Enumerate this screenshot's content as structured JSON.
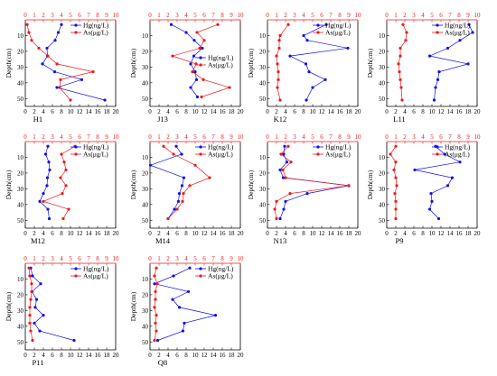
{
  "colors": {
    "hg": "#1010ee",
    "as": "#ee1b1b",
    "axis": "#000000"
  },
  "legend_labels": {
    "hg": "Hg(ng/L)",
    "as": "As(μg/L)"
  },
  "y_axis_label": "Depth(cm)",
  "chart_data": [
    {
      "type": "line",
      "title": "H1",
      "legend_position": "top-right",
      "xlabel": "",
      "ylabel": "Depth(cm)",
      "ylim": [
        55,
        0
      ],
      "x_top": {
        "range": [
          0,
          10
        ],
        "ticks": [
          "0",
          "1",
          "2",
          "3",
          "4",
          "5",
          "6",
          "7",
          "8",
          "9",
          "10"
        ]
      },
      "x_bottom": {
        "range": [
          0,
          20
        ],
        "ticks": [
          "0",
          "2",
          "4",
          "6",
          "8",
          "10",
          "12",
          "14",
          "16",
          "18",
          "20"
        ]
      },
      "y_ticks": [
        "10",
        "20",
        "30",
        "40",
        "50"
      ],
      "series": [
        {
          "name": "Hg(ng/L)",
          "axis": "bottom",
          "depth": [
            3,
            8,
            13,
            18,
            23,
            28,
            33,
            38,
            43,
            51
          ],
          "values": [
            8.0,
            7.3,
            6.6,
            4.8,
            4.9,
            3.8,
            6.5,
            12.5,
            7.0,
            17.6
          ]
        },
        {
          "name": "As(μg/L)",
          "axis": "top",
          "depth": [
            3,
            8,
            13,
            18,
            23,
            28,
            33,
            38,
            43,
            51
          ],
          "values": [
            0.2,
            0.4,
            0.7,
            1.5,
            2.5,
            3.5,
            7.5,
            3.9,
            3.8,
            5.0
          ]
        }
      ]
    },
    {
      "type": "line",
      "title": "J13",
      "legend_position": "center-right",
      "xlabel": "",
      "ylabel": "Depth(cm)",
      "ylim": [
        55,
        0
      ],
      "x_top": {
        "range": [
          0,
          10
        ],
        "ticks": [
          "0",
          "1",
          "2",
          "3",
          "4",
          "5",
          "6",
          "7",
          "8",
          "9",
          "10"
        ]
      },
      "x_bottom": {
        "range": [
          0,
          20
        ],
        "ticks": [
          "0",
          "2",
          "4",
          "6",
          "8",
          "10",
          "12",
          "14",
          "16",
          "18",
          "20"
        ]
      },
      "y_ticks": [
        "10",
        "20",
        "30",
        "40",
        "50"
      ],
      "series": [
        {
          "name": "Hg(ng/L)",
          "axis": "bottom",
          "depth": [
            3,
            8,
            13,
            18,
            23,
            28,
            33,
            38,
            43,
            49
          ],
          "values": [
            4.7,
            8.0,
            9.8,
            11.6,
            9.7,
            9.0,
            10.0,
            10.3,
            9.0,
            10.5
          ]
        },
        {
          "name": "As(μg/L)",
          "axis": "top",
          "depth": [
            3,
            8,
            13,
            18,
            23,
            28,
            33,
            38,
            43,
            49
          ],
          "values": [
            7.5,
            5.2,
            6.0,
            5.5,
            2.5,
            5.1,
            4.7,
            5.9,
            8.8,
            5.7
          ]
        }
      ]
    },
    {
      "type": "line",
      "title": "K12",
      "legend_position": "top-right",
      "xlabel": "",
      "ylabel": "Depth(cm)",
      "ylim": [
        55,
        0
      ],
      "x_top": {
        "range": [
          0,
          10
        ],
        "ticks": [
          "0",
          "1",
          "2",
          "3",
          "4",
          "5",
          "6",
          "7",
          "8",
          "9",
          "10"
        ]
      },
      "x_bottom": {
        "range": [
          0,
          20
        ],
        "ticks": [
          "0",
          "2",
          "4",
          "6",
          "8",
          "10",
          "12",
          "14",
          "16",
          "18",
          "20"
        ]
      },
      "y_ticks": [
        "10",
        "20",
        "30",
        "40",
        "50"
      ],
      "series": [
        {
          "name": "Hg(ng/L)",
          "axis": "bottom",
          "depth": [
            3,
            10,
            13,
            18,
            23,
            28,
            33,
            38,
            43,
            51
          ],
          "values": [
            13.0,
            8.0,
            8.8,
            17.8,
            5.0,
            8.5,
            9.2,
            12.8,
            10.0,
            8.6
          ]
        },
        {
          "name": "As(μg/L)",
          "axis": "top",
          "depth": [
            3,
            10,
            13,
            18,
            23,
            28,
            33,
            38,
            43,
            51
          ],
          "values": [
            2.3,
            1.4,
            1.3,
            1.3,
            1.0,
            1.1,
            1.2,
            1.2,
            1.1,
            1.4
          ]
        }
      ]
    },
    {
      "type": "line",
      "title": "L11",
      "legend_position": "top-right",
      "xlabel": "",
      "ylabel": "Depth(cm)",
      "ylim": [
        55,
        0
      ],
      "x_top": {
        "range": [
          0,
          10
        ],
        "ticks": [
          "0",
          "1",
          "2",
          "3",
          "4",
          "5",
          "6",
          "7",
          "8",
          "9",
          "10"
        ]
      },
      "x_bottom": {
        "range": [
          0,
          20
        ],
        "ticks": [
          "0",
          "2",
          "4",
          "6",
          "8",
          "10",
          "12",
          "14",
          "16",
          "18",
          "20"
        ]
      },
      "y_ticks": [
        "10",
        "20",
        "30",
        "40",
        "50"
      ],
      "series": [
        {
          "name": "Hg(ng/L)",
          "axis": "bottom",
          "depth": [
            3,
            8,
            13,
            18,
            23,
            28,
            33,
            38,
            43,
            51
          ],
          "values": [
            18.2,
            19.0,
            16.2,
            13.5,
            9.5,
            18.0,
            11.6,
            11.3,
            10.8,
            10.5
          ]
        },
        {
          "name": "As(μg/L)",
          "axis": "top",
          "depth": [
            3,
            8,
            13,
            18,
            23,
            28,
            33,
            38,
            43,
            51
          ],
          "values": [
            1.8,
            2.2,
            2.1,
            1.5,
            1.5,
            1.3,
            1.4,
            1.5,
            1.6,
            1.7
          ]
        }
      ]
    },
    {
      "type": "line",
      "title": "M12",
      "legend_position": "top-right",
      "xlabel": "",
      "ylabel": "Depth(cm)",
      "ylim": [
        55,
        0
      ],
      "x_top": {
        "range": [
          0,
          10
        ],
        "ticks": [
          "0",
          "1",
          "2",
          "3",
          "4",
          "5",
          "6",
          "7",
          "8",
          "9",
          "10"
        ]
      },
      "x_bottom": {
        "range": [
          0,
          20
        ],
        "ticks": [
          "0",
          "2",
          "4",
          "6",
          "8",
          "10",
          "12",
          "14",
          "16",
          "18",
          "20"
        ]
      },
      "y_ticks": [
        "10",
        "20",
        "30",
        "40",
        "50"
      ],
      "series": [
        {
          "name": "Hg(ng/L)",
          "axis": "bottom",
          "depth": [
            3,
            8,
            13,
            18,
            23,
            28,
            33,
            38,
            43,
            49
          ],
          "values": [
            5.0,
            4.5,
            5.2,
            5.4,
            4.9,
            4.8,
            4.0,
            3.2,
            5.0,
            5.3
          ]
        },
        {
          "name": "As(μg/L)",
          "axis": "top",
          "depth": [
            3,
            8,
            13,
            18,
            23,
            28,
            33,
            38,
            43,
            49
          ],
          "values": [
            5.5,
            4.0,
            4.3,
            4.5,
            3.9,
            4.5,
            4.1,
            2.0,
            4.8,
            4.2
          ]
        }
      ]
    },
    {
      "type": "line",
      "title": "M14",
      "legend_position": "top-right",
      "xlabel": "",
      "ylabel": "Depth(cm)",
      "ylim": [
        55,
        0
      ],
      "x_top": {
        "range": [
          0,
          10
        ],
        "ticks": [
          "0",
          "1",
          "2",
          "3",
          "4",
          "5",
          "6",
          "7",
          "8",
          "9",
          "10"
        ]
      },
      "x_bottom": {
        "range": [
          0,
          20
        ],
        "ticks": [
          "0",
          "2",
          "4",
          "6",
          "8",
          "10",
          "12",
          "14",
          "16",
          "18",
          "20"
        ]
      },
      "y_ticks": [
        "10",
        "20",
        "30",
        "40",
        "50"
      ],
      "series": [
        {
          "name": "Hg(ng/L)",
          "axis": "bottom",
          "depth": [
            3,
            8,
            15,
            23,
            28,
            33,
            38,
            43,
            49
          ],
          "values": [
            5.8,
            7.0,
            0.1,
            7.5,
            7.1,
            6.5,
            6.3,
            5.4,
            4.0
          ]
        },
        {
          "name": "As(μg/L)",
          "axis": "top",
          "depth": [
            3,
            8,
            15,
            23,
            28,
            33,
            38,
            43,
            49
          ],
          "values": [
            1.5,
            2.6,
            5.0,
            6.6,
            4.4,
            3.7,
            3.6,
            3.0,
            2.0
          ]
        }
      ]
    },
    {
      "type": "line",
      "title": "N13",
      "legend_position": "top-right",
      "xlabel": "",
      "ylabel": "Depth(cm)",
      "ylim": [
        55,
        0
      ],
      "x_top": {
        "range": [
          0,
          10
        ],
        "ticks": [
          "0",
          "1",
          "2",
          "3",
          "4",
          "5",
          "6",
          "7",
          "8",
          "9",
          "10"
        ]
      },
      "x_bottom": {
        "range": [
          0,
          20
        ],
        "ticks": [
          "0",
          "2",
          "4",
          "6",
          "8",
          "10",
          "12",
          "14",
          "16",
          "18",
          "20"
        ]
      },
      "y_ticks": [
        "10",
        "20",
        "30",
        "40",
        "50"
      ],
      "series": [
        {
          "name": "Hg(ng/L)",
          "axis": "bottom",
          "depth": [
            3,
            8,
            13,
            18,
            23,
            28,
            33,
            38,
            43,
            49
          ],
          "values": [
            3.8,
            3.6,
            4.3,
            2.8,
            3.5,
            18.0,
            8.8,
            4.0,
            3.6,
            2.8
          ]
        },
        {
          "name": "As(μg/L)",
          "axis": "top",
          "depth": [
            3,
            8,
            13,
            18,
            23,
            28,
            33,
            38,
            43,
            49
          ],
          "values": [
            2.3,
            1.5,
            2.6,
            1.7,
            2.0,
            9.0,
            2.5,
            1.0,
            0.8,
            1.0
          ]
        }
      ]
    },
    {
      "type": "line",
      "title": "P9",
      "legend_position": "top-right",
      "xlabel": "",
      "ylabel": "Depth(cm)",
      "ylim": [
        55,
        0
      ],
      "x_top": {
        "range": [
          0,
          10
        ],
        "ticks": [
          "0",
          "1",
          "2",
          "3",
          "4",
          "5",
          "6",
          "7",
          "8",
          "9",
          "10"
        ]
      },
      "x_bottom": {
        "range": [
          0,
          20
        ],
        "ticks": [
          "0",
          "2",
          "4",
          "6",
          "8",
          "10",
          "12",
          "14",
          "16",
          "18",
          "20"
        ]
      },
      "y_ticks": [
        "10",
        "20",
        "30",
        "40",
        "50"
      ],
      "series": [
        {
          "name": "Hg(ng/L)",
          "axis": "bottom",
          "depth": [
            3,
            8,
            13,
            18,
            23,
            28,
            33,
            38,
            43,
            49
          ],
          "values": [
            10.8,
            12.8,
            16.2,
            6.2,
            14.5,
            13.5,
            9.8,
            10.0,
            9.5,
            11.5
          ]
        },
        {
          "name": "As(μg/L)",
          "axis": "top",
          "depth": [
            3,
            8,
            13,
            18,
            23,
            28,
            33,
            38,
            43,
            49
          ],
          "values": [
            1.0,
            0.4,
            1.0,
            0.8,
            1.0,
            1.1,
            0.9,
            1.0,
            1.0,
            1.0
          ]
        }
      ]
    },
    {
      "type": "line",
      "title": "P11",
      "legend_position": "top-right",
      "xlabel": "",
      "ylabel": "Depth(cm)",
      "ylim": [
        55,
        0
      ],
      "x_top": {
        "range": [
          0,
          10
        ],
        "ticks": [
          "0",
          "1",
          "2",
          "3",
          "4",
          "5",
          "6",
          "7",
          "8",
          "9",
          "10"
        ]
      },
      "x_bottom": {
        "range": [
          0,
          20
        ],
        "ticks": [
          "0",
          "2",
          "4",
          "6",
          "8",
          "10",
          "12",
          "14",
          "16",
          "18",
          "20"
        ]
      },
      "y_ticks": [
        "10",
        "20",
        "30",
        "40",
        "50"
      ],
      "series": [
        {
          "name": "Hg(ng/L)",
          "axis": "bottom",
          "depth": [
            3,
            8,
            13,
            18,
            23,
            28,
            33,
            38,
            43,
            49
          ],
          "values": [
            1.2,
            1.6,
            3.4,
            1.5,
            2.5,
            2.2,
            4.0,
            2.0,
            3.2,
            10.8
          ]
        },
        {
          "name": "As(μg/L)",
          "axis": "top",
          "depth": [
            3,
            8,
            13,
            18,
            23,
            28,
            33,
            38,
            43,
            49
          ],
          "values": [
            0.4,
            0.5,
            0.7,
            0.7,
            0.6,
            0.5,
            0.5,
            0.5,
            0.6,
            0.8
          ]
        }
      ]
    },
    {
      "type": "line",
      "title": "Q8",
      "legend_position": "top-right",
      "xlabel": "",
      "ylabel": "Depth(cm)",
      "ylim": [
        55,
        0
      ],
      "x_top": {
        "range": [
          0,
          10
        ],
        "ticks": [
          "0",
          "1",
          "2",
          "3",
          "4",
          "5",
          "6",
          "7",
          "8",
          "9",
          "10"
        ]
      },
      "x_bottom": {
        "range": [
          0,
          20
        ],
        "ticks": [
          "0",
          "2",
          "4",
          "6",
          "8",
          "10",
          "12",
          "14",
          "16",
          "18",
          "20"
        ]
      },
      "y_ticks": [
        "10",
        "20",
        "30",
        "40",
        "50"
      ],
      "series": [
        {
          "name": "Hg(ng/L)",
          "axis": "bottom",
          "depth": [
            3,
            8,
            13,
            18,
            23,
            28,
            33,
            38,
            43,
            49
          ],
          "values": [
            8.8,
            5.2,
            1.0,
            8.5,
            5.0,
            6.5,
            14.5,
            7.6,
            7.3,
            1.7
          ]
        },
        {
          "name": "As(μg/L)",
          "axis": "top",
          "depth": [
            3,
            8,
            13,
            18,
            23,
            28,
            33,
            38,
            43,
            49
          ],
          "values": [
            0.7,
            0.5,
            0.8,
            0.6,
            0.6,
            0.5,
            0.7,
            0.6,
            0.7,
            0.5
          ]
        }
      ]
    }
  ]
}
